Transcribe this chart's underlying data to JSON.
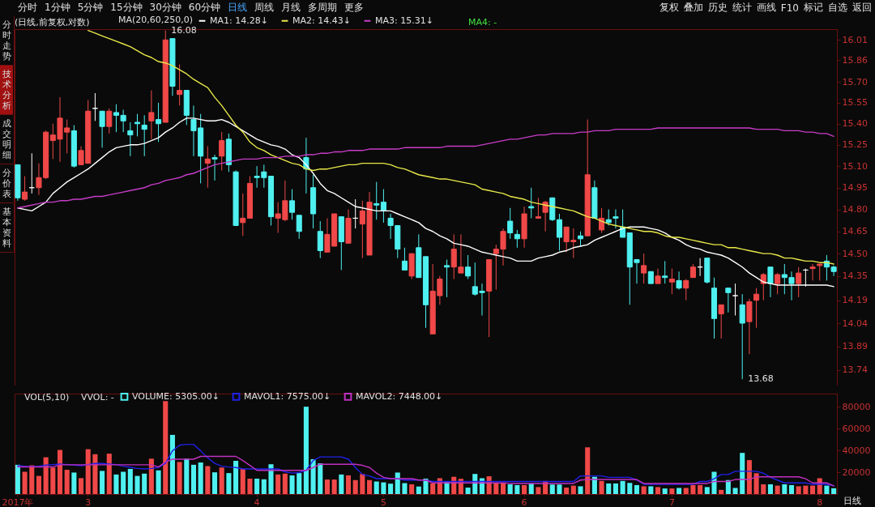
{
  "chart_data": [
    {
      "type": "candlestick",
      "title": "(日线,前复权,对数)",
      "legend_title": "MA(20,60,250,0)",
      "legend": "top left",
      "log": true,
      "tick_labels": "y",
      "categories": [
        null,
        null,
        null,
        null,
        null,
        null,
        null,
        null,
        null,
        null,
        null,
        null,
        null,
        null,
        null,
        null,
        null,
        null,
        null,
        null,
        null,
        null,
        null,
        null,
        null,
        null,
        null,
        null,
        null,
        null,
        null,
        null,
        null,
        null,
        null,
        null,
        null,
        null,
        null,
        null,
        null,
        null,
        null,
        null,
        null,
        null,
        null,
        null,
        null,
        null,
        null,
        null,
        null,
        null,
        null,
        null,
        null,
        null,
        null,
        null,
        null,
        null,
        null,
        null,
        null,
        null,
        null,
        null,
        null,
        null,
        null,
        null,
        null,
        null,
        null,
        null,
        null,
        null,
        null,
        null,
        null,
        null,
        null,
        null,
        null,
        null,
        null,
        null,
        null,
        null,
        null,
        null,
        null,
        null,
        null,
        null,
        null,
        null,
        null,
        null,
        null,
        null,
        null,
        null,
        null,
        null,
        null,
        null,
        null,
        null,
        null,
        null,
        null,
        null,
        null,
        null,
        null
      ],
      "ohlc": [
        [
          15.11,
          15.11,
          14.86,
          14.88
        ],
        [
          14.87,
          15.03,
          14.86,
          14.92
        ],
        [
          14.95,
          15.19,
          14.91,
          14.95
        ],
        [
          14.95,
          15.12,
          14.9,
          15.02
        ],
        [
          15.02,
          15.35,
          15.01,
          15.34
        ],
        [
          15.28,
          15.4,
          15.15,
          15.32
        ],
        [
          15.29,
          15.59,
          15.13,
          15.44
        ],
        [
          15.34,
          15.43,
          15.19,
          15.37
        ],
        [
          15.35,
          15.39,
          15.09,
          15.1
        ],
        [
          15.11,
          15.24,
          15.11,
          15.21
        ],
        [
          15.12,
          15.57,
          15.12,
          15.49
        ],
        [
          15.51,
          15.62,
          15.42,
          15.51
        ],
        [
          15.49,
          15.49,
          15.23,
          15.38
        ],
        [
          15.38,
          15.51,
          15.33,
          15.49
        ],
        [
          15.48,
          15.54,
          15.34,
          15.46
        ],
        [
          15.46,
          15.5,
          15.34,
          15.42
        ],
        [
          15.35,
          15.41,
          15.17,
          15.32
        ],
        [
          15.41,
          15.47,
          15.31,
          15.4
        ],
        [
          15.39,
          15.46,
          15.17,
          15.36
        ],
        [
          15.42,
          15.64,
          15.29,
          15.48
        ],
        [
          15.43,
          15.55,
          15.27,
          15.4
        ],
        [
          15.41,
          16.08,
          15.41,
          16.01
        ],
        [
          16.02,
          16.02,
          15.6,
          15.67
        ],
        [
          15.61,
          15.83,
          15.53,
          15.64
        ],
        [
          15.64,
          15.64,
          15.39,
          15.46
        ],
        [
          15.43,
          15.53,
          15.17,
          15.35
        ],
        [
          15.37,
          15.47,
          14.98,
          15.17
        ],
        [
          15.12,
          15.24,
          14.95,
          15.15
        ],
        [
          15.16,
          15.18,
          15.0,
          15.15
        ],
        [
          15.17,
          15.34,
          15.07,
          15.28
        ],
        [
          15.29,
          15.33,
          15.06,
          15.11
        ],
        [
          15.06,
          15.07,
          14.69,
          14.69
        ],
        [
          14.71,
          14.91,
          14.62,
          14.74
        ],
        [
          14.74,
          15.03,
          14.74,
          14.98
        ],
        [
          15.03,
          15.1,
          14.95,
          15.02
        ],
        [
          15.06,
          15.11,
          14.95,
          15.02
        ],
        [
          15.03,
          15.03,
          14.69,
          14.75
        ],
        [
          14.74,
          14.85,
          14.64,
          14.77
        ],
        [
          14.73,
          15.0,
          14.72,
          14.86
        ],
        [
          14.86,
          14.94,
          14.73,
          14.78
        ],
        [
          14.76,
          14.76,
          14.6,
          14.65
        ],
        [
          15.16,
          15.3,
          14.91,
          15.08
        ],
        [
          14.95,
          15.04,
          14.67,
          14.77
        ],
        [
          14.65,
          14.72,
          14.47,
          14.52
        ],
        [
          14.51,
          14.74,
          14.51,
          14.63
        ],
        [
          14.55,
          14.77,
          14.55,
          14.77
        ],
        [
          14.75,
          14.75,
          14.39,
          14.58
        ],
        [
          14.57,
          14.8,
          14.57,
          14.74
        ],
        [
          14.74,
          14.87,
          14.67,
          14.74
        ],
        [
          14.7,
          14.86,
          14.47,
          14.79
        ],
        [
          14.49,
          14.92,
          14.49,
          14.85
        ],
        [
          14.84,
          14.99,
          14.73,
          14.83
        ],
        [
          14.85,
          14.94,
          14.71,
          14.79
        ],
        [
          14.74,
          14.77,
          14.6,
          14.69
        ],
        [
          14.69,
          14.69,
          14.47,
          14.53
        ],
        [
          14.45,
          14.54,
          14.39,
          14.39
        ],
        [
          14.35,
          14.5,
          14.33,
          14.5
        ],
        [
          14.54,
          14.63,
          14.34,
          14.34
        ],
        [
          14.48,
          14.48,
          14.01,
          14.16
        ],
        [
          13.97,
          14.43,
          13.97,
          14.25
        ],
        [
          14.22,
          14.35,
          14.16,
          14.33
        ],
        [
          14.42,
          14.46,
          14.21,
          14.41
        ],
        [
          14.41,
          14.63,
          14.33,
          14.53
        ],
        [
          14.37,
          14.63,
          14.37,
          14.41
        ],
        [
          14.41,
          14.49,
          14.33,
          14.35
        ],
        [
          14.28,
          14.44,
          14.22,
          14.23
        ],
        [
          14.25,
          14.3,
          14.09,
          14.24
        ],
        [
          14.25,
          14.46,
          13.95,
          14.46
        ],
        [
          14.5,
          14.56,
          14.26,
          14.53
        ],
        [
          14.53,
          14.67,
          14.42,
          14.65
        ],
        [
          14.72,
          14.81,
          14.6,
          14.64
        ],
        [
          14.63,
          14.66,
          14.54,
          14.6
        ],
        [
          14.6,
          14.82,
          14.54,
          14.77
        ],
        [
          14.82,
          14.95,
          14.74,
          14.81
        ],
        [
          14.74,
          14.88,
          14.74,
          14.75
        ],
        [
          14.78,
          14.86,
          14.65,
          14.85
        ],
        [
          14.88,
          14.88,
          14.72,
          14.73
        ],
        [
          14.73,
          14.77,
          14.52,
          14.61
        ],
        [
          14.58,
          14.68,
          14.51,
          14.68
        ],
        [
          14.58,
          14.67,
          14.47,
          14.59
        ],
        [
          14.62,
          14.65,
          14.55,
          14.6
        ],
        [
          14.62,
          15.43,
          14.62,
          15.04
        ],
        [
          14.95,
          15.0,
          14.74,
          14.74
        ],
        [
          14.66,
          14.81,
          14.64,
          14.74
        ],
        [
          14.73,
          14.8,
          14.69,
          14.71
        ],
        [
          14.75,
          14.8,
          14.67,
          14.74
        ],
        [
          14.68,
          14.8,
          14.61,
          14.61
        ],
        [
          14.64,
          14.64,
          14.16,
          14.41
        ],
        [
          14.46,
          14.46,
          14.3,
          14.44
        ],
        [
          14.37,
          14.5,
          14.3,
          14.42
        ],
        [
          14.38,
          14.38,
          14.3,
          14.3
        ],
        [
          14.3,
          14.4,
          14.3,
          14.35
        ],
        [
          14.35,
          14.45,
          14.3,
          14.34
        ],
        [
          14.31,
          14.4,
          14.23,
          14.33
        ],
        [
          14.32,
          14.38,
          14.26,
          14.27
        ],
        [
          14.27,
          14.33,
          14.19,
          14.32
        ],
        [
          14.34,
          14.43,
          14.34,
          14.41
        ],
        [
          14.41,
          14.47,
          14.35,
          14.41
        ],
        [
          14.47,
          14.47,
          14.3,
          14.31
        ],
        [
          14.27,
          14.34,
          13.94,
          14.07
        ],
        [
          14.1,
          14.16,
          13.94,
          14.16
        ],
        [
          14.27,
          14.27,
          14.11,
          14.24
        ],
        [
          14.22,
          14.3,
          14.09,
          14.22
        ],
        [
          14.16,
          14.23,
          13.68,
          14.04
        ],
        [
          14.05,
          14.2,
          13.84,
          14.18
        ],
        [
          14.19,
          14.27,
          14.01,
          14.23
        ],
        [
          14.3,
          14.37,
          14.19,
          14.36
        ],
        [
          14.41,
          14.41,
          14.21,
          14.3
        ],
        [
          14.3,
          14.37,
          14.23,
          14.36
        ],
        [
          14.36,
          14.43,
          14.23,
          14.34
        ],
        [
          14.34,
          14.38,
          14.19,
          14.3
        ],
        [
          14.3,
          14.41,
          14.21,
          14.37
        ],
        [
          14.39,
          14.4,
          14.28,
          14.39
        ],
        [
          14.4,
          14.43,
          14.32,
          14.41
        ],
        [
          14.42,
          14.43,
          14.32,
          14.43
        ],
        [
          14.45,
          14.49,
          14.32,
          14.41
        ],
        [
          14.41,
          14.42,
          14.35,
          14.38
        ]
      ],
      "colors": [
        "#4ff0f0",
        "#f04848",
        "#ffffff",
        "#f04848",
        "#f04848",
        "#f04848",
        "#f04848",
        "#f04848",
        "#4ff0f0",
        "#f04848",
        "#f04848",
        "#ffffff",
        "#4ff0f0",
        "#f04848",
        "#4ff0f0",
        "#4ff0f0",
        "#4ff0f0",
        "#4ff0f0",
        "#4ff0f0",
        "#f04848",
        "#4ff0f0",
        "#f04848",
        "#4ff0f0",
        "#f04848",
        "#4ff0f0",
        "#4ff0f0",
        "#4ff0f0",
        "#f04848",
        "#4ff0f0",
        "#f04848",
        "#4ff0f0",
        "#4ff0f0",
        "#f04848",
        "#f04848",
        "#4ff0f0",
        "#4ff0f0",
        "#4ff0f0",
        "#f04848",
        "#f04848",
        "#4ff0f0",
        "#4ff0f0",
        "#4ff0f0",
        "#4ff0f0",
        "#4ff0f0",
        "#f04848",
        "#f04848",
        "#4ff0f0",
        "#f04848",
        "#ffffff",
        "#f04848",
        "#f04848",
        "#4ff0f0",
        "#4ff0f0",
        "#4ff0f0",
        "#4ff0f0",
        "#4ff0f0",
        "#f04848",
        "#4ff0f0",
        "#4ff0f0",
        "#f04848",
        "#f04848",
        "#4ff0f0",
        "#f04848",
        "#f04848",
        "#4ff0f0",
        "#4ff0f0",
        "#4ff0f0",
        "#f04848",
        "#f04848",
        "#f04848",
        "#4ff0f0",
        "#4ff0f0",
        "#f04848",
        "#4ff0f0",
        "#f04848",
        "#f04848",
        "#4ff0f0",
        "#4ff0f0",
        "#f04848",
        "#f04848",
        "#4ff0f0",
        "#f04848",
        "#4ff0f0",
        "#f04848",
        "#4ff0f0",
        "#4ff0f0",
        "#4ff0f0",
        "#4ff0f0",
        "#4ff0f0",
        "#f04848",
        "#4ff0f0",
        "#f04848",
        "#4ff0f0",
        "#f04848",
        "#4ff0f0",
        "#f04848",
        "#f04848",
        "#ffffff",
        "#4ff0f0",
        "#4ff0f0",
        "#f04848",
        "#4ff0f0",
        "#ffffff",
        "#4ff0f0",
        "#f04848",
        "#f04848",
        "#f04848",
        "#4ff0f0",
        "#f04848",
        "#4ff0f0",
        "#4ff0f0",
        "#f04848",
        "#ffffff",
        "#f04848",
        "#f04848",
        "#4ff0f0",
        "#4ff0f0"
      ],
      "series": [
        {
          "type": "line",
          "name": "MA1: 14.28↓",
          "color": "#ffffff",
          "values": [
            14.81,
            14.8,
            14.79,
            14.82,
            14.85,
            14.91,
            14.95,
            14.99,
            15.02,
            15.05,
            15.08,
            15.12,
            15.16,
            15.2,
            15.23,
            15.24,
            15.25,
            15.25,
            15.26,
            15.28,
            15.3,
            15.34,
            15.37,
            15.41,
            15.44,
            15.44,
            15.43,
            15.42,
            15.42,
            15.43,
            15.41,
            15.38,
            15.35,
            15.32,
            15.29,
            15.27,
            15.25,
            15.24,
            15.22,
            15.18,
            15.16,
            15.11,
            15.05,
            14.98,
            14.93,
            14.91,
            14.88,
            14.85,
            14.82,
            14.81,
            14.8,
            14.79,
            14.79,
            14.79,
            14.77,
            14.75,
            14.73,
            14.71,
            14.67,
            14.65,
            14.62,
            14.6,
            14.57,
            14.56,
            14.55,
            14.53,
            14.51,
            14.5,
            14.49,
            14.48,
            14.47,
            14.45,
            14.45,
            14.45,
            14.47,
            14.48,
            14.49,
            14.51,
            14.52,
            14.54,
            14.55,
            14.56,
            14.59,
            14.61,
            14.63,
            14.65,
            14.67,
            14.68,
            14.68,
            14.68,
            14.67,
            14.66,
            14.64,
            14.61,
            14.59,
            14.56,
            14.54,
            14.53,
            14.51,
            14.5,
            14.49,
            14.47,
            14.44,
            14.41,
            14.37,
            14.34,
            14.31,
            14.3,
            14.29,
            14.29,
            14.29,
            14.29,
            14.29,
            14.29,
            14.29,
            14.29,
            14.28
          ]
        },
        {
          "type": "line",
          "name": "MA2: 14.43↓",
          "color": "#e8e84a",
          "values": [
            null,
            null,
            null,
            null,
            null,
            null,
            null,
            null,
            null,
            null,
            16.08,
            16.06,
            16.04,
            16.02,
            16.0,
            15.98,
            15.96,
            15.93,
            15.9,
            15.88,
            15.85,
            15.84,
            15.82,
            15.79,
            15.76,
            15.72,
            15.69,
            15.66,
            15.59,
            15.53,
            15.46,
            15.39,
            15.34,
            15.27,
            15.23,
            15.21,
            15.18,
            15.16,
            15.14,
            15.12,
            15.11,
            15.08,
            15.07,
            15.08,
            15.08,
            15.09,
            15.1,
            15.11,
            15.11,
            15.12,
            15.12,
            15.12,
            15.12,
            15.11,
            15.09,
            15.08,
            15.06,
            15.04,
            15.03,
            15.02,
            15.01,
            15.01,
            15.0,
            14.99,
            14.98,
            14.97,
            14.94,
            14.93,
            14.92,
            14.91,
            14.89,
            14.88,
            14.87,
            14.85,
            14.84,
            14.83,
            14.82,
            14.81,
            14.8,
            14.79,
            14.77,
            14.75,
            14.74,
            14.72,
            14.7,
            14.69,
            14.68,
            14.67,
            14.66,
            14.65,
            14.65,
            14.64,
            14.62,
            14.61,
            14.61,
            14.6,
            14.59,
            14.58,
            14.57,
            14.56,
            14.56,
            14.54,
            14.54,
            14.53,
            14.52,
            14.51,
            14.5,
            14.5,
            14.49,
            14.47,
            14.47,
            14.46,
            14.45,
            14.45,
            14.44,
            14.44,
            14.43
          ]
        },
        {
          "type": "line",
          "name": "MA3: 15.31↓",
          "color": "#c83cc8",
          "values": [
            14.81,
            14.82,
            14.83,
            14.84,
            14.85,
            14.85,
            14.86,
            14.86,
            14.87,
            14.87,
            14.88,
            14.89,
            14.89,
            14.9,
            14.91,
            14.92,
            14.93,
            14.94,
            14.95,
            14.97,
            14.98,
            15.0,
            15.01,
            15.02,
            15.04,
            15.05,
            15.07,
            15.09,
            15.11,
            15.12,
            15.13,
            15.14,
            15.15,
            15.15,
            15.15,
            15.16,
            15.16,
            15.16,
            15.17,
            15.17,
            15.17,
            15.18,
            15.18,
            15.19,
            15.19,
            15.2,
            15.2,
            15.21,
            15.21,
            15.21,
            15.22,
            15.22,
            15.22,
            15.22,
            15.22,
            15.23,
            15.23,
            15.23,
            15.23,
            15.23,
            15.23,
            15.24,
            15.24,
            15.24,
            15.24,
            15.24,
            15.25,
            15.26,
            15.27,
            15.28,
            15.29,
            15.29,
            15.3,
            15.31,
            15.32,
            15.32,
            15.33,
            15.33,
            15.33,
            15.33,
            15.34,
            15.34,
            15.35,
            15.35,
            15.35,
            15.36,
            15.36,
            15.36,
            15.36,
            15.36,
            15.36,
            15.37,
            15.37,
            15.37,
            15.37,
            15.37,
            15.37,
            15.37,
            15.37,
            15.37,
            15.37,
            15.37,
            15.37,
            15.37,
            15.37,
            15.36,
            15.36,
            15.36,
            15.36,
            15.35,
            15.35,
            15.35,
            15.34,
            15.34,
            15.33,
            15.33,
            15.31
          ]
        }
      ],
      "ylim": [
        13.64,
        16.09
      ],
      "yticks": [
        13.74,
        13.89,
        14.04,
        14.19,
        14.35,
        {
          "value": 14.5,
          "label": "14.50"
        },
        14.65,
        {
          "value": 14.8,
          "label": "14.80"
        },
        14.95,
        {
          "value": 15.1,
          "label": "15.10"
        },
        15.25,
        {
          "value": 15.4,
          "label": "15.40"
        },
        15.55,
        {
          "value": 15.7,
          "label": "15.70"
        },
        15.86,
        16.01
      ],
      "annotations": [
        "16.08",
        "13.68",
        "MA4: -"
      ]
    },
    {
      "type": "bar",
      "legend": "top left",
      "legend_title": "VOL(5,10)",
      "categories": [
        "2017年",
        null,
        null,
        null,
        null,
        null,
        null,
        null,
        null,
        null,
        "3",
        null,
        null,
        null,
        null,
        null,
        null,
        null,
        null,
        null,
        null,
        null,
        null,
        null,
        null,
        null,
        null,
        null,
        null,
        null,
        null,
        null,
        null,
        null,
        "4",
        null,
        null,
        null,
        null,
        null,
        null,
        null,
        null,
        null,
        null,
        null,
        null,
        null,
        null,
        null,
        null,
        null,
        "5",
        null,
        null,
        null,
        null,
        null,
        null,
        null,
        null,
        null,
        null,
        null,
        null,
        null,
        null,
        null,
        null,
        null,
        null,
        null,
        "6",
        null,
        null,
        null,
        null,
        null,
        null,
        null,
        null,
        null,
        null,
        null,
        null,
        null,
        null,
        null,
        null,
        null,
        null,
        null,
        null,
        "7",
        null,
        null,
        null,
        null,
        null,
        null,
        null,
        null,
        null,
        null,
        null,
        null,
        null,
        null,
        null,
        null,
        null,
        null,
        null,
        null,
        "8",
        null,
        null
      ],
      "series": [
        {
          "name": "VOLUME: 5305.00↓",
          "colors": [
            "#4ff0f0",
            "#f04848",
            "#f04848",
            "#f04848",
            "#f04848",
            "#f04848",
            "#f04848",
            "#f04848",
            "#4ff0f0",
            "#f04848",
            "#f04848",
            "#f04848",
            "#4ff0f0",
            "#f04848",
            "#4ff0f0",
            "#4ff0f0",
            "#4ff0f0",
            "#4ff0f0",
            "#4ff0f0",
            "#f04848",
            "#4ff0f0",
            "#f04848",
            "#4ff0f0",
            "#f04848",
            "#4ff0f0",
            "#4ff0f0",
            "#4ff0f0",
            "#f04848",
            "#4ff0f0",
            "#f04848",
            "#4ff0f0",
            "#4ff0f0",
            "#f04848",
            "#f04848",
            "#4ff0f0",
            "#4ff0f0",
            "#4ff0f0",
            "#f04848",
            "#f04848",
            "#4ff0f0",
            "#4ff0f0",
            "#4ff0f0",
            "#4ff0f0",
            "#4ff0f0",
            "#f04848",
            "#f04848",
            "#4ff0f0",
            "#f04848",
            "#f04848",
            "#f04848",
            "#f04848",
            "#4ff0f0",
            "#4ff0f0",
            "#4ff0f0",
            "#4ff0f0",
            "#4ff0f0",
            "#f04848",
            "#4ff0f0",
            "#4ff0f0",
            "#f04848",
            "#f04848",
            "#4ff0f0",
            "#f04848",
            "#f04848",
            "#4ff0f0",
            "#4ff0f0",
            "#4ff0f0",
            "#f04848",
            "#f04848",
            "#f04848",
            "#4ff0f0",
            "#4ff0f0",
            "#f04848",
            "#4ff0f0",
            "#f04848",
            "#f04848",
            "#4ff0f0",
            "#4ff0f0",
            "#f04848",
            "#f04848",
            "#4ff0f0",
            "#f04848",
            "#4ff0f0",
            "#f04848",
            "#4ff0f0",
            "#4ff0f0",
            "#4ff0f0",
            "#4ff0f0",
            "#4ff0f0",
            "#f04848",
            "#4ff0f0",
            "#f04848",
            "#4ff0f0",
            "#f04848",
            "#4ff0f0",
            "#f04848",
            "#f04848",
            "#f04848",
            "#4ff0f0",
            "#4ff0f0",
            "#f04848",
            "#4ff0f0",
            "#4ff0f0",
            "#4ff0f0",
            "#f04848",
            "#f04848",
            "#f04848",
            "#4ff0f0",
            "#f04848",
            "#4ff0f0",
            "#4ff0f0",
            "#f04848",
            "#f04848",
            "#f04848",
            "#f04848",
            "#4ff0f0",
            "#4ff0f0"
          ],
          "values": [
            26800,
            20400,
            26300,
            16600,
            33700,
            24300,
            40400,
            22200,
            19700,
            14600,
            41100,
            36500,
            21200,
            37000,
            17900,
            20400,
            23000,
            16600,
            18700,
            32400,
            21700,
            85100,
            54200,
            29400,
            32400,
            26800,
            28900,
            25600,
            19900,
            24300,
            19200,
            30400,
            23000,
            14100,
            14100,
            13500,
            27300,
            17900,
            18700,
            17100,
            19200,
            80000,
            31900,
            28100,
            13300,
            13300,
            17900,
            17100,
            12800,
            18400,
            12800,
            11500,
            10700,
            9500,
            19700,
            10000,
            8900,
            6900,
            14100,
            9700,
            14500,
            11000,
            15800,
            14000,
            5900,
            18400,
            14500,
            16300,
            9700,
            9700,
            8900,
            8200,
            8200,
            9700,
            6400,
            12000,
            8700,
            8700,
            5900,
            7700,
            7100,
            42800,
            15800,
            12000,
            9700,
            9700,
            12000,
            10200,
            8200,
            7100,
            7100,
            6400,
            5100,
            5100,
            5600,
            5600,
            8200,
            8200,
            6400,
            20400,
            3800,
            12800,
            5600,
            37700,
            31100,
            19100,
            8900,
            8900,
            7700,
            8900,
            8200,
            7100,
            7700,
            7700,
            14500,
            7700,
            5305
          ]
        },
        {
          "type": "line",
          "name": "MAVOL1: 7575.00↓",
          "color": "#2020e8",
          "values": [
            26000,
            25500,
            25000,
            25500,
            26500,
            27000,
            27500,
            27000,
            26500,
            26000,
            27000,
            28000,
            28000,
            27500,
            27000,
            25500,
            24500,
            23500,
            23000,
            23500,
            24300,
            28100,
            39600,
            44700,
            45500,
            45500,
            39600,
            33200,
            28100,
            25500,
            24800,
            24300,
            23000,
            23000,
            23000,
            23000,
            23000,
            23000,
            20400,
            19200,
            19700,
            21700,
            30700,
            34000,
            34000,
            34000,
            34000,
            31900,
            24300,
            17900,
            16600,
            14100,
            14100,
            14100,
            14100,
            12800,
            12800,
            12800,
            12800,
            11500,
            11500,
            11500,
            11500,
            11500,
            11500,
            11500,
            11500,
            11500,
            11500,
            11500,
            11500,
            11500,
            11500,
            11500,
            11500,
            11500,
            11500,
            11500,
            11500,
            11500,
            16600,
            16600,
            16600,
            16600,
            15300,
            15300,
            15300,
            15300,
            12800,
            8900,
            8900,
            8900,
            8900,
            8900,
            8900,
            8900,
            8900,
            11500,
            11500,
            14000,
            17900,
            17900,
            20900,
            20900,
            20900,
            20900,
            19100,
            15300,
            12800,
            10200,
            10200,
            10200,
            10200,
            8900,
            8900,
            8900,
            7575
          ]
        },
        {
          "type": "line",
          "name": "MAVOL2: 7448.00↓",
          "color": "#c030c0",
          "values": [
            24800,
            24800,
            24800,
            24800,
            24800,
            24800,
            26800,
            26800,
            26800,
            26800,
            26800,
            26800,
            26800,
            26800,
            26800,
            26800,
            26800,
            26800,
            26800,
            26800,
            24800,
            29400,
            31900,
            31900,
            31900,
            31900,
            34500,
            34500,
            34500,
            34500,
            34500,
            34500,
            30700,
            26300,
            21700,
            21700,
            21700,
            21700,
            21700,
            21700,
            21700,
            21700,
            24300,
            27300,
            27300,
            27300,
            27300,
            27300,
            27300,
            26300,
            24300,
            19200,
            15300,
            14100,
            14100,
            14100,
            14100,
            12800,
            12800,
            10200,
            10200,
            10200,
            10200,
            10200,
            10200,
            10200,
            10200,
            10200,
            10200,
            10200,
            9700,
            9700,
            9700,
            9700,
            9700,
            9700,
            9700,
            9700,
            9700,
            9700,
            12800,
            13300,
            13300,
            13300,
            13300,
            13300,
            13300,
            13300,
            13300,
            9700,
            9700,
            9700,
            9700,
            9700,
            9700,
            9700,
            9700,
            9700,
            9700,
            11500,
            11500,
            11500,
            13300,
            13300,
            13300,
            15800,
            15800,
            15800,
            15800,
            15800,
            15800,
            15800,
            14000,
            10200,
            10200,
            10200,
            7448
          ]
        }
      ],
      "ylim": [
        0,
        92000
      ],
      "yticks": [
        20000,
        40000,
        60000,
        80000
      ],
      "annotations": [
        "VVOL: -",
        "日线"
      ]
    },
    {
      "type": "other",
      "annotations": [
        "分时",
        "1分钟",
        "5分钟",
        "15分钟",
        "30分钟",
        "60分钟",
        "日线",
        "周线",
        "月线",
        "多周期",
        "更多"
      ]
    },
    {
      "type": "other",
      "annotations": [
        "复权",
        "叠加",
        "历史",
        "统计",
        "画线",
        "F10",
        "标记",
        "自选",
        "返回"
      ]
    },
    {
      "type": "other",
      "annotations": [
        "分时走势",
        "技术分析",
        "成交明细",
        "分价表",
        "基本资料"
      ]
    }
  ]
}
